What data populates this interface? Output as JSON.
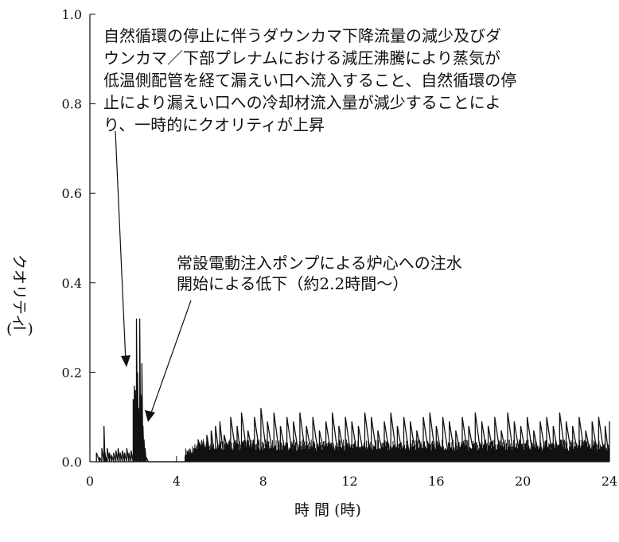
{
  "chart_data": {
    "type": "line",
    "title": "",
    "xlabel": "時 間 (時)",
    "ylabel": "クオリティ",
    "ylabel_unit": "(ー)",
    "xlim": [
      0,
      24
    ],
    "ylim": [
      0,
      1.0
    ],
    "x_ticks": [
      0,
      4,
      8,
      12,
      16,
      20,
      24
    ],
    "y_ticks": [
      0.0,
      0.2,
      0.4,
      0.6,
      0.8,
      1.0
    ],
    "x_tick_labels": [
      "0",
      "4",
      "8",
      "12",
      "16",
      "20",
      "24"
    ],
    "y_tick_labels": [
      "0.0",
      "0.2",
      "0.4",
      "0.6",
      "0.8",
      "1.0"
    ],
    "grid": false,
    "series": [
      {
        "color": "#111111",
        "x": [
          0.3,
          0.45,
          0.55,
          0.65,
          0.7,
          0.75,
          0.8,
          0.9,
          1.0,
          1.1,
          1.2,
          1.3,
          1.4,
          1.5,
          1.6,
          1.7,
          1.8,
          1.9,
          2.0,
          2.05,
          2.1,
          2.15,
          2.2,
          2.25,
          2.3,
          2.35,
          2.4,
          2.45,
          2.5,
          2.55,
          2.6,
          2.7,
          2.8,
          3.0,
          3.5,
          4.0,
          4.4,
          4.6,
          4.8,
          5.0,
          5.2,
          5.4,
          5.6,
          5.8,
          6.0,
          6.2,
          6.5,
          6.8,
          7.0,
          7.3,
          7.6,
          7.9,
          8.2,
          8.5,
          8.8,
          9.1,
          9.4,
          9.7,
          10.0,
          10.3,
          10.6,
          10.9,
          11.2,
          11.5,
          11.8,
          12.1,
          12.4,
          12.7,
          13.0,
          13.3,
          13.6,
          13.9,
          14.2,
          14.5,
          14.8,
          15.1,
          15.4,
          15.7,
          16.0,
          16.3,
          16.6,
          16.9,
          17.2,
          17.5,
          17.8,
          18.1,
          18.4,
          18.7,
          19.0,
          19.3,
          19.6,
          19.9,
          20.2,
          20.5,
          20.8,
          21.1,
          21.4,
          21.7,
          22.0,
          22.3,
          22.6,
          22.9,
          23.2,
          23.5,
          23.8,
          24.0
        ],
        "y": [
          0.02,
          0.01,
          0.03,
          0.08,
          0.02,
          0.01,
          0.03,
          0.02,
          0.015,
          0.02,
          0.025,
          0.03,
          0.02,
          0.025,
          0.02,
          0.03,
          0.02,
          0.025,
          0.14,
          0.17,
          0.16,
          0.32,
          0.2,
          0.12,
          0.32,
          0.15,
          0.22,
          0.08,
          0.05,
          0.03,
          0.01,
          0.0,
          0.0,
          0.0,
          0.0,
          0.0,
          0.01,
          0.02,
          0.03,
          0.05,
          0.04,
          0.06,
          0.07,
          0.08,
          0.09,
          0.06,
          0.1,
          0.08,
          0.11,
          0.07,
          0.1,
          0.12,
          0.09,
          0.11,
          0.08,
          0.1,
          0.09,
          0.11,
          0.08,
          0.1,
          0.07,
          0.09,
          0.11,
          0.08,
          0.1,
          0.09,
          0.08,
          0.11,
          0.1,
          0.07,
          0.09,
          0.11,
          0.08,
          0.1,
          0.09,
          0.07,
          0.1,
          0.11,
          0.08,
          0.1,
          0.09,
          0.07,
          0.1,
          0.08,
          0.11,
          0.09,
          0.08,
          0.1,
          0.07,
          0.11,
          0.09,
          0.08,
          0.1,
          0.07,
          0.09,
          0.1,
          0.08,
          0.11,
          0.09,
          0.08,
          0.1,
          0.07,
          0.09,
          0.1,
          0.08,
          0.09
        ]
      }
    ],
    "annotations": [
      {
        "lines": [
          "自然循環の停止に伴うダウンカマ下降流量の減少及びダ",
          "ウンカマ／下部プレナムにおける減圧沸騰により蒸気が",
          "低温側配管を経て漏えい口へ流入すること、自然循環の停",
          "止により漏えい口への冷却材流入量が減少することによ",
          "り、一時的にクオリティが上昇"
        ]
      },
      {
        "lines": [
          "常設電動注入ポンプによる炉心への注水",
          "開始による低下（約2.2時間～）"
        ]
      }
    ]
  }
}
